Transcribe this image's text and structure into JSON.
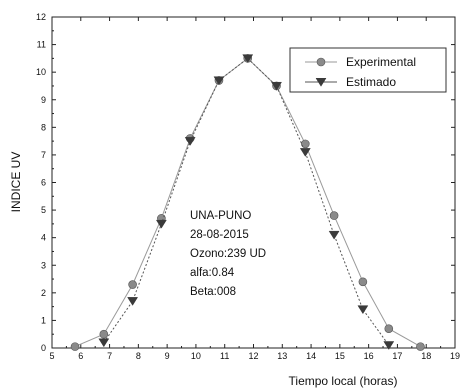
{
  "chart_data": {
    "type": "line",
    "title": "",
    "xlabel": "Tiempo local (horas)",
    "ylabel": "INDICE UV",
    "xlim": [
      5,
      19
    ],
    "ylim": [
      0,
      12
    ],
    "x_ticks": [
      "5",
      "6",
      "7",
      "8",
      "9",
      "10",
      "11",
      "12",
      "13",
      "14",
      "15",
      "16",
      "17",
      "18",
      "19"
    ],
    "y_ticks": [
      "0",
      "1",
      "2",
      "3",
      "4",
      "5",
      "6",
      "7",
      "8",
      "9",
      "10",
      "11",
      "12"
    ],
    "grid": false,
    "legend_position": "top-right",
    "series": [
      {
        "name": "Experimental",
        "marker": "circle",
        "color": "#8a8a8a",
        "points": [
          {
            "x": 5.8,
            "y": 0.05
          },
          {
            "x": 6.8,
            "y": 0.5
          },
          {
            "x": 7.8,
            "y": 2.3
          },
          {
            "x": 8.8,
            "y": 4.7
          },
          {
            "x": 9.8,
            "y": 7.6
          },
          {
            "x": 10.8,
            "y": 9.7
          },
          {
            "x": 11.8,
            "y": 10.5
          },
          {
            "x": 12.8,
            "y": 9.5
          },
          {
            "x": 13.8,
            "y": 7.4
          },
          {
            "x": 14.8,
            "y": 4.8
          },
          {
            "x": 15.8,
            "y": 2.4
          },
          {
            "x": 16.7,
            "y": 0.7
          },
          {
            "x": 17.8,
            "y": 0.05
          }
        ]
      },
      {
        "name": "Estimado",
        "marker": "triangle-down",
        "color": "#3a3a3a",
        "points": [
          {
            "x": 6.8,
            "y": 0.2
          },
          {
            "x": 7.8,
            "y": 1.7
          },
          {
            "x": 8.8,
            "y": 4.5
          },
          {
            "x": 9.8,
            "y": 7.5
          },
          {
            "x": 10.8,
            "y": 9.7
          },
          {
            "x": 11.8,
            "y": 10.5
          },
          {
            "x": 12.8,
            "y": 9.5
          },
          {
            "x": 13.8,
            "y": 7.1
          },
          {
            "x": 14.8,
            "y": 4.1
          },
          {
            "x": 15.8,
            "y": 1.4
          },
          {
            "x": 16.7,
            "y": 0.1
          }
        ]
      }
    ],
    "annotation": [
      "UNA-PUNO",
      "28-08-2015",
      "Ozono:239 UD",
      "alfa:0.84",
      "Beta:008"
    ]
  }
}
